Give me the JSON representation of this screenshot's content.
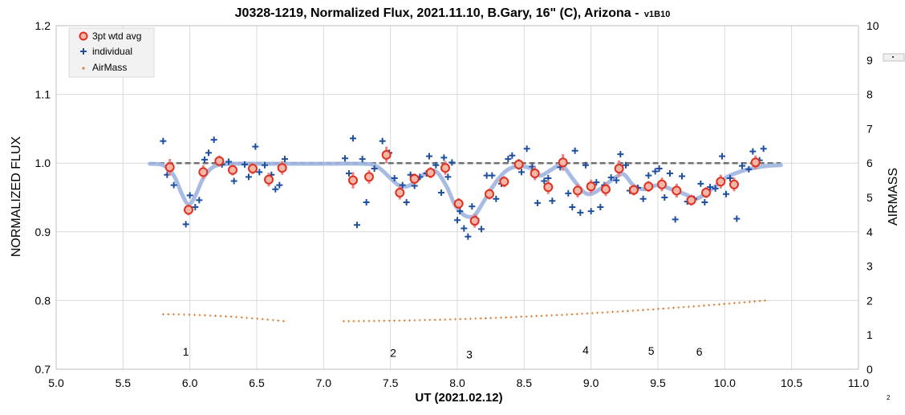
{
  "chart_data": {
    "type": "scatter",
    "title": "J0328-1219, Normalized Flux, 2021.11.10, B.Gary, 16\" (C), Arizona - ",
    "title_suffix": "v1B10",
    "xlabel": "UT (2021.02.12)",
    "ylabel": "NORMALIZED FLUX",
    "y2label": "AIRMASS",
    "xlim": [
      5.0,
      11.0
    ],
    "ylim": [
      0.7,
      1.2
    ],
    "y2lim": [
      0,
      10
    ],
    "xticks": [
      "5.0",
      "5.5",
      "6.0",
      "6.5",
      "7.0",
      "7.5",
      "8.0",
      "8.5",
      "9.0",
      "9.5",
      "10.0",
      "10.5",
      "11.0"
    ],
    "yticks": [
      "0.7",
      "0.8",
      "0.9",
      "1.0",
      "1.1",
      "1.2"
    ],
    "y2ticks": [
      "0",
      "1",
      "2",
      "3",
      "4",
      "5",
      "6",
      "7",
      "8",
      "9",
      "10"
    ],
    "grid": true,
    "legend_position": "top-left",
    "legend": [
      {
        "label": "3pt wtd avg",
        "marker": "open-circle",
        "color": "#e03020"
      },
      {
        "label": "individual",
        "marker": "plus",
        "color": "#1f4fa0"
      },
      {
        "label": "AirMass",
        "marker": "dot",
        "color": "#d07020"
      }
    ],
    "colors": {
      "avg_edge": "#e03020",
      "avg_fill": "#f4b6a6",
      "errorbar": "#f08080",
      "individual": "#1f4fa0",
      "airmass": "#d07020",
      "model": "#9fb5e0",
      "baseline": "#707070"
    },
    "series": [
      {
        "name": "3pt wtd avg",
        "axis": "left",
        "points": [
          [
            5.85,
            0.994
          ],
          [
            5.99,
            0.932
          ],
          [
            6.1,
            0.987
          ],
          [
            6.22,
            1.003
          ],
          [
            6.32,
            0.99
          ],
          [
            6.47,
            0.992
          ],
          [
            6.59,
            0.976
          ],
          [
            6.69,
            0.993
          ],
          [
            7.22,
            0.975
          ],
          [
            7.34,
            0.98
          ],
          [
            7.47,
            1.012
          ],
          [
            7.57,
            0.957
          ],
          [
            7.68,
            0.977
          ],
          [
            7.8,
            0.986
          ],
          [
            7.91,
            0.993
          ],
          [
            8.01,
            0.941
          ],
          [
            8.13,
            0.916
          ],
          [
            8.24,
            0.955
          ],
          [
            8.35,
            0.973
          ],
          [
            8.46,
            0.998
          ],
          [
            8.58,
            0.985
          ],
          [
            8.68,
            0.965
          ],
          [
            8.79,
            1.001
          ],
          [
            8.9,
            0.96
          ],
          [
            9.0,
            0.966
          ],
          [
            9.11,
            0.962
          ],
          [
            9.21,
            0.992
          ],
          [
            9.32,
            0.961
          ],
          [
            9.43,
            0.966
          ],
          [
            9.53,
            0.969
          ],
          [
            9.64,
            0.96
          ],
          [
            9.75,
            0.946
          ],
          [
            9.86,
            0.957
          ],
          [
            9.97,
            0.973
          ],
          [
            10.07,
            0.969
          ],
          [
            10.23,
            1.001
          ]
        ],
        "errors": [
          0.012,
          0.008,
          0.01,
          0.008,
          0.008,
          0.008,
          0.01,
          0.01,
          0.012,
          0.01,
          0.012,
          0.01,
          0.008,
          0.008,
          0.01,
          0.008,
          0.01,
          0.008,
          0.008,
          0.008,
          0.01,
          0.01,
          0.012,
          0.01,
          0.01,
          0.01,
          0.012,
          0.008,
          0.008,
          0.01,
          0.01,
          0.008,
          0.008,
          0.01,
          0.01,
          0.01
        ]
      },
      {
        "name": "individual",
        "axis": "left",
        "points": [
          [
            5.8,
            1.032
          ],
          [
            5.83,
            0.983
          ],
          [
            5.88,
            0.968
          ],
          [
            5.97,
            0.911
          ],
          [
            6.0,
            0.953
          ],
          [
            6.04,
            0.936
          ],
          [
            6.07,
            0.946
          ],
          [
            6.11,
            1.005
          ],
          [
            6.14,
            1.015
          ],
          [
            6.18,
            1.034
          ],
          [
            6.24,
            0.998
          ],
          [
            6.29,
            1.002
          ],
          [
            6.33,
            0.974
          ],
          [
            6.41,
            0.998
          ],
          [
            6.44,
            0.98
          ],
          [
            6.49,
            1.024
          ],
          [
            6.52,
            0.987
          ],
          [
            6.56,
            0.997
          ],
          [
            6.61,
            0.983
          ],
          [
            6.64,
            0.962
          ],
          [
            6.67,
            0.968
          ],
          [
            6.71,
            1.006
          ],
          [
            7.16,
            1.007
          ],
          [
            7.19,
            0.985
          ],
          [
            7.22,
            1.036
          ],
          [
            7.25,
            0.91
          ],
          [
            7.29,
            1.006
          ],
          [
            7.32,
            0.943
          ],
          [
            7.38,
            0.992
          ],
          [
            7.44,
            1.032
          ],
          [
            7.49,
            1.015
          ],
          [
            7.53,
            0.978
          ],
          [
            7.59,
            0.968
          ],
          [
            7.62,
            0.943
          ],
          [
            7.65,
            0.983
          ],
          [
            7.68,
            0.967
          ],
          [
            7.72,
            0.98
          ],
          [
            7.77,
            0.985
          ],
          [
            7.79,
            1.01
          ],
          [
            7.84,
            0.997
          ],
          [
            7.88,
            0.957
          ],
          [
            7.9,
            1.008
          ],
          [
            7.93,
            0.98
          ],
          [
            7.96,
            1.001
          ],
          [
            8.0,
            0.917
          ],
          [
            8.02,
            0.93
          ],
          [
            8.05,
            0.905
          ],
          [
            8.08,
            0.893
          ],
          [
            8.11,
            0.937
          ],
          [
            8.14,
            0.919
          ],
          [
            8.18,
            0.904
          ],
          [
            8.22,
            0.982
          ],
          [
            8.26,
            0.982
          ],
          [
            8.29,
            0.948
          ],
          [
            8.33,
            0.97
          ],
          [
            8.38,
            1.006
          ],
          [
            8.41,
            1.011
          ],
          [
            8.48,
            0.987
          ],
          [
            8.52,
            1.021
          ],
          [
            8.56,
            0.995
          ],
          [
            8.6,
            0.942
          ],
          [
            8.65,
            0.974
          ],
          [
            8.68,
            0.978
          ],
          [
            8.71,
            0.945
          ],
          [
            8.77,
            0.994
          ],
          [
            8.83,
            0.956
          ],
          [
            8.86,
            0.936
          ],
          [
            8.88,
            1.018
          ],
          [
            8.92,
            0.928
          ],
          [
            8.96,
            0.997
          ],
          [
            9.0,
            0.93
          ],
          [
            9.04,
            0.972
          ],
          [
            9.07,
            0.936
          ],
          [
            9.1,
            0.968
          ],
          [
            9.15,
            0.979
          ],
          [
            9.19,
            0.975
          ],
          [
            9.22,
            1.013
          ],
          [
            9.26,
            0.997
          ],
          [
            9.29,
            0.96
          ],
          [
            9.35,
            0.964
          ],
          [
            9.39,
            0.948
          ],
          [
            9.43,
            0.982
          ],
          [
            9.48,
            0.988
          ],
          [
            9.51,
            0.992
          ],
          [
            9.55,
            0.95
          ],
          [
            9.59,
            0.985
          ],
          [
            9.63,
            0.918
          ],
          [
            9.68,
            0.981
          ],
          [
            9.72,
            0.944
          ],
          [
            9.77,
            0.948
          ],
          [
            9.82,
            0.97
          ],
          [
            9.85,
            0.943
          ],
          [
            9.89,
            0.965
          ],
          [
            9.93,
            0.963
          ],
          [
            9.98,
            1.01
          ],
          [
            10.01,
            0.955
          ],
          [
            10.04,
            0.978
          ],
          [
            10.09,
            0.919
          ],
          [
            10.13,
            0.996
          ],
          [
            10.18,
            0.991
          ],
          [
            10.21,
            1.017
          ],
          [
            10.26,
            1.004
          ],
          [
            10.29,
            1.021
          ]
        ]
      },
      {
        "name": "AirMass",
        "axis": "right",
        "segments": [
          {
            "x0": 5.8,
            "x1": 6.7,
            "y0": 1.6,
            "y1": 1.4,
            "n": 24
          },
          {
            "x0": 7.15,
            "x1": 10.3,
            "y0": 1.4,
            "y1": 2.0,
            "n": 84
          }
        ]
      },
      {
        "name": "model",
        "axis": "left",
        "points": [
          [
            5.7,
            0.999
          ],
          [
            5.8,
            0.997
          ],
          [
            5.88,
            0.982
          ],
          [
            5.94,
            0.955
          ],
          [
            5.99,
            0.94
          ],
          [
            6.04,
            0.952
          ],
          [
            6.1,
            0.978
          ],
          [
            6.18,
            0.995
          ],
          [
            6.3,
            0.999
          ],
          [
            6.6,
            0.999
          ],
          [
            7.0,
            0.999
          ],
          [
            7.3,
            0.999
          ],
          [
            7.4,
            0.995
          ],
          [
            7.5,
            0.978
          ],
          [
            7.56,
            0.968
          ],
          [
            7.62,
            0.966
          ],
          [
            7.68,
            0.972
          ],
          [
            7.76,
            0.985
          ],
          [
            7.84,
            0.988
          ],
          [
            7.92,
            0.966
          ],
          [
            7.98,
            0.94
          ],
          [
            8.04,
            0.926
          ],
          [
            8.08,
            0.922
          ],
          [
            8.13,
            0.924
          ],
          [
            8.2,
            0.945
          ],
          [
            8.28,
            0.97
          ],
          [
            8.36,
            0.988
          ],
          [
            8.44,
            0.995
          ],
          [
            8.54,
            0.993
          ],
          [
            8.62,
            0.982
          ],
          [
            8.7,
            0.99
          ],
          [
            8.78,
            0.997
          ],
          [
            8.86,
            0.978
          ],
          [
            8.94,
            0.959
          ],
          [
            9.0,
            0.955
          ],
          [
            9.08,
            0.964
          ],
          [
            9.16,
            0.976
          ],
          [
            9.24,
            0.984
          ],
          [
            9.32,
            0.967
          ],
          [
            9.4,
            0.962
          ],
          [
            9.5,
            0.968
          ],
          [
            9.6,
            0.962
          ],
          [
            9.7,
            0.955
          ],
          [
            9.78,
            0.948
          ],
          [
            9.86,
            0.956
          ],
          [
            9.94,
            0.968
          ],
          [
            10.02,
            0.98
          ],
          [
            10.12,
            0.988
          ],
          [
            10.22,
            0.993
          ],
          [
            10.32,
            0.996
          ],
          [
            10.42,
            0.997
          ]
        ]
      },
      {
        "name": "baseline",
        "axis": "left",
        "points": [
          [
            5.7,
            1.0
          ],
          [
            10.42,
            1.0
          ]
        ]
      }
    ],
    "annotations": [
      {
        "text": "1",
        "x": 5.97,
        "y": 0.72
      },
      {
        "text": "2",
        "x": 7.52,
        "y": 0.718
      },
      {
        "text": "3",
        "x": 8.09,
        "y": 0.716
      },
      {
        "text": "4",
        "x": 8.96,
        "y": 0.722
      },
      {
        "text": "5",
        "x": 9.45,
        "y": 0.721
      },
      {
        "text": "6",
        "x": 9.81,
        "y": 0.72
      }
    ],
    "corner_mark": "2"
  }
}
